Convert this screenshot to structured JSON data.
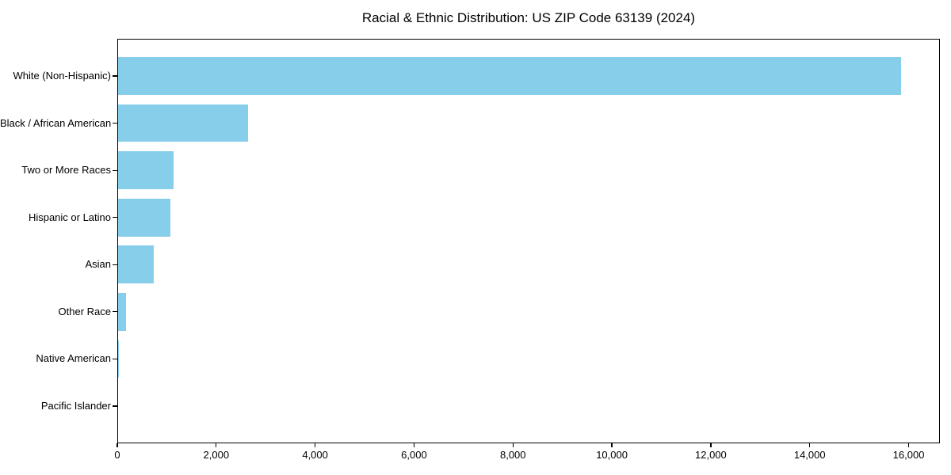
{
  "chart_data": {
    "type": "bar",
    "orientation": "horizontal",
    "title": "Racial & Ethnic Distribution: US ZIP Code 63139 (2024)",
    "xlabel": "",
    "ylabel": "",
    "categories": [
      "White (Non-Hispanic)",
      "Black / African American",
      "Two or More Races",
      "Hispanic or Latino",
      "Asian",
      "Other Race",
      "Native American",
      "Pacific Islander"
    ],
    "values": [
      15840,
      2650,
      1130,
      1080,
      730,
      170,
      40,
      0
    ],
    "xlim": [
      0,
      16632
    ],
    "xticks": [
      0,
      2000,
      4000,
      6000,
      8000,
      10000,
      12000,
      14000,
      16000
    ],
    "xtick_labels": [
      "0",
      "2,000",
      "4,000",
      "6,000",
      "8,000",
      "10,000",
      "12,000",
      "14,000",
      "16,000"
    ],
    "bar_color": "#87CEEB",
    "frame_color": "#000000",
    "text_color": "#000000",
    "grid": false,
    "legend": null
  }
}
